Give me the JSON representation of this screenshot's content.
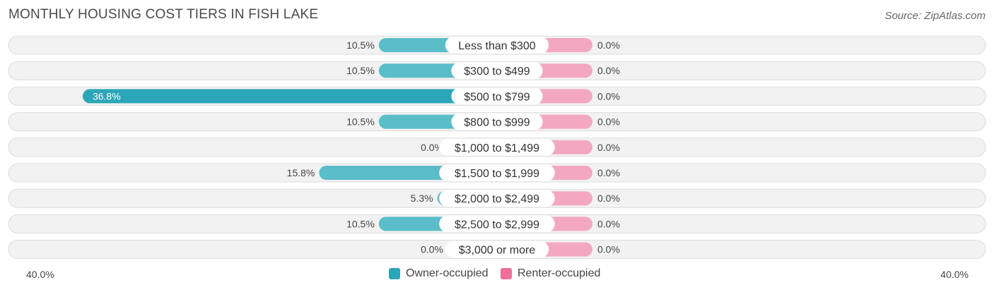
{
  "header": {
    "title": "MONTHLY HOUSING COST TIERS IN FISH LAKE",
    "source": "Source: ZipAtlas.com"
  },
  "colors": {
    "owner": "#5bbdc9",
    "owner_strong": "#2ba6b8",
    "renter": "#f4a7c1",
    "renter_legend": "#ee6f98",
    "row_bg": "#f2f2f2",
    "row_border": "#dcdcdc"
  },
  "chart_data": {
    "type": "bar",
    "orientation": "horizontal-diverging",
    "title": "MONTHLY HOUSING COST TIERS IN FISH LAKE",
    "categories": [
      "Less than $300",
      "$300 to $499",
      "$500 to $799",
      "$800 to $999",
      "$1,000 to $1,499",
      "$1,500 to $1,999",
      "$2,000 to $2,499",
      "$2,500 to $2,999",
      "$3,000 or more"
    ],
    "series": [
      {
        "name": "Owner-occupied",
        "values": [
          10.5,
          10.5,
          36.8,
          10.5,
          0.0,
          15.8,
          5.3,
          10.5,
          0.0
        ],
        "labels": [
          "10.5%",
          "10.5%",
          "36.8%",
          "10.5%",
          "0.0%",
          "15.8%",
          "5.3%",
          "10.5%",
          "0.0%"
        ]
      },
      {
        "name": "Renter-occupied",
        "values": [
          0.0,
          0.0,
          0.0,
          0.0,
          0.0,
          0.0,
          0.0,
          0.0,
          0.0
        ],
        "labels": [
          "0.0%",
          "0.0%",
          "0.0%",
          "0.0%",
          "0.0%",
          "0.0%",
          "0.0%",
          "0.0%",
          "0.0%"
        ]
      }
    ],
    "axis_max": 40.0,
    "axis_labels": {
      "left": "40.0%",
      "right": "40.0%"
    },
    "legend_position": "bottom-center"
  }
}
